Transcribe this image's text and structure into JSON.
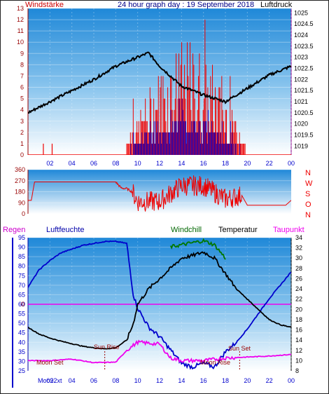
{
  "header": {
    "left_label": "Windstärke",
    "title": "24 hour graph day : 19 September 2018",
    "right_label": "Luftdruck"
  },
  "panel3_labels": {
    "regen": "Regen",
    "luftfeuchte": "Luftfeuchte",
    "windchill": "Windchill",
    "temperatur": "Temperatur",
    "taupunkt": "Taupunkt"
  },
  "direction_letters": [
    "N",
    "W",
    "S",
    "O",
    "N"
  ],
  "annotations": {
    "sun_rise": "Sun Rise",
    "sun_set": "Sun Set",
    "moon_set": "Moon Set",
    "moon_rise": "Moon Rise",
    "moon_row": "Moo92xt"
  },
  "colors": {
    "blue": "#0000cc",
    "red": "#ee0000",
    "green": "#007700",
    "magenta": "#ee00ee",
    "black": "#000000",
    "axis_dark_red": "#990000"
  },
  "chart_data": [
    {
      "type": "line",
      "name": "wind_pressure",
      "x_ticks": [
        "02",
        "04",
        "06",
        "08",
        "10",
        "12",
        "14",
        "16",
        "18",
        "20",
        "22",
        "00"
      ],
      "left_axis": {
        "label": "Windstärke",
        "ylim": [
          0,
          13
        ],
        "ticks": [
          0,
          1,
          2,
          3,
          4,
          5,
          6,
          7,
          8,
          9,
          10,
          11,
          12,
          13
        ]
      },
      "right_axis": {
        "label": "Luftdruck",
        "ylim": [
          1018.6,
          1025.2
        ],
        "ticks": [
          "1019",
          "1019.5",
          "1020",
          "1020.5",
          "1021",
          "1021.5",
          "1022",
          "1022.5",
          "1023",
          "1023.5",
          "1024",
          "1024.5",
          "1025"
        ]
      },
      "pressure": {
        "x": [
          0,
          2,
          4,
          6,
          8,
          10,
          11,
          12,
          14,
          16,
          18,
          20,
          22,
          24
        ],
        "y": [
          1020.5,
          1021,
          1021.5,
          1022,
          1022.6,
          1023,
          1023.2,
          1022.6,
          1021.7,
          1021.3,
          1021,
          1021.6,
          1022.2,
          1022.6
        ]
      },
      "wind_active_hours": [
        9,
        19.8
      ],
      "wind_isolated_spikes": [
        {
          "x": 1.4,
          "y": 1
        },
        {
          "x": 2.2,
          "y": 1
        }
      ]
    },
    {
      "type": "line",
      "name": "wind_direction",
      "x_ticks": [
        "02",
        "04",
        "06",
        "08",
        "10",
        "12",
        "14",
        "16",
        "18",
        "20",
        "22",
        "00"
      ],
      "left_axis": {
        "ylim": [
          0,
          360
        ],
        "ticks": [
          0,
          90,
          180,
          270,
          360
        ]
      },
      "right_letters": [
        "N",
        "W",
        "S",
        "O",
        "N"
      ],
      "direction": {
        "x": [
          0,
          0.3,
          0.6,
          8,
          8.5,
          9,
          9.5,
          10,
          12,
          14,
          16,
          18,
          19.5,
          20,
          23.5,
          24
        ],
        "y": [
          110,
          110,
          260,
          260,
          210,
          205,
          180,
          100,
          100,
          230,
          230,
          120,
          150,
          70,
          70,
          110
        ]
      }
    },
    {
      "type": "line",
      "name": "humidity_temperature",
      "x_ticks": [
        "02",
        "04",
        "06",
        "08",
        "10",
        "12",
        "14",
        "16",
        "18",
        "20",
        "22",
        "00"
      ],
      "left_axis": {
        "ylim": [
          25,
          95
        ],
        "ticks": [
          25,
          30,
          35,
          40,
          45,
          50,
          55,
          60,
          65,
          70,
          75,
          80,
          85,
          90,
          95
        ]
      },
      "right_axis": {
        "ylim": [
          8,
          34
        ],
        "ticks": [
          8,
          10,
          12,
          14,
          16,
          18,
          20,
          22,
          24,
          26,
          28,
          30,
          32,
          34
        ]
      },
      "zero_line": 0,
      "series": [
        {
          "name": "Luftfeuchte",
          "x": [
            0,
            1,
            2,
            3,
            4,
            5,
            6,
            7,
            8,
            9,
            9.6,
            10,
            11,
            12,
            13,
            14,
            15,
            16,
            17,
            18,
            19,
            20,
            21,
            22,
            23,
            24
          ],
          "y": [
            69,
            78,
            83,
            87,
            89,
            91,
            92,
            93,
            93,
            92,
            65,
            58,
            48,
            43,
            36,
            29,
            27,
            29,
            27,
            35,
            40,
            47,
            55,
            63,
            70,
            77
          ]
        },
        {
          "name": "Temperatur",
          "x": [
            0,
            1,
            2,
            3,
            4,
            5,
            6,
            7,
            8,
            9,
            9.6,
            10,
            11,
            12,
            13,
            14,
            15,
            16,
            17,
            18,
            19,
            20,
            21,
            22,
            23,
            24
          ],
          "y": [
            16.5,
            15.2,
            14.4,
            13.8,
            13.3,
            12.8,
            12.5,
            12.3,
            12.5,
            14,
            17.2,
            21,
            24,
            26,
            28,
            30,
            30.5,
            31.2,
            30,
            27,
            24,
            22,
            20,
            18,
            17,
            16.5
          ]
        },
        {
          "name": "Windchill",
          "x": [
            13,
            14,
            15,
            16,
            17,
            18
          ],
          "y": [
            32.2,
            32.6,
            33,
            33.4,
            32.6,
            30
          ]
        },
        {
          "name": "Taupunkt",
          "x": [
            0,
            2,
            4,
            6,
            8,
            9,
            10,
            12,
            13,
            14,
            16,
            18,
            20,
            22,
            24
          ],
          "y": [
            10,
            10,
            10.3,
            9.6,
            9.7,
            12,
            13.6,
            13.2,
            10.5,
            10,
            10,
            10.5,
            10.7,
            10.9,
            11.2
          ]
        }
      ],
      "markers": {
        "sun_rise": 7,
        "sun_set": 19.3
      }
    }
  ]
}
